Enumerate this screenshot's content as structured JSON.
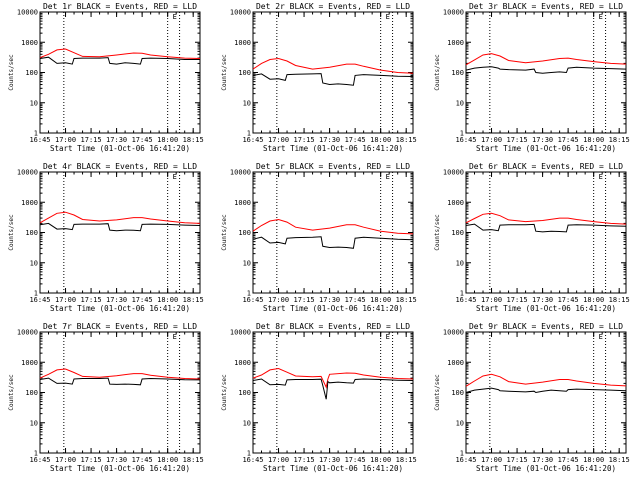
{
  "chart_data": [
    {
      "type": "line",
      "title": "Det 1r BLACK = Events, RED = LLD",
      "xlabel": "Start Time (01-Oct-06 16:41:20)",
      "ylabel": "Counts/sec",
      "yscale": "log",
      "ylim": [
        1,
        10000
      ],
      "xlim": [
        "16:45",
        "18:19"
      ],
      "x_ticks": [
        "16:45",
        "17:00",
        "17:15",
        "17:30",
        "17:45",
        "18:00",
        "18:15"
      ],
      "y_ticks": [
        "1",
        "10",
        "100",
        "1000",
        "10000"
      ],
      "vlines": [
        "16:59",
        "18:00",
        "18:07"
      ],
      "marker": "E",
      "series": [
        {
          "name": "Events",
          "color": "#000000",
          "x": [
            "16:45",
            "16:50",
            "16:55",
            "17:00",
            "17:04",
            "17:05",
            "17:10",
            "17:20",
            "17:25",
            "17:26",
            "17:30",
            "17:35",
            "17:40",
            "17:44",
            "17:45",
            "17:50",
            "18:00",
            "18:10",
            "18:19"
          ],
          "y": [
            290,
            320,
            200,
            210,
            190,
            290,
            300,
            300,
            310,
            200,
            190,
            210,
            200,
            190,
            290,
            300,
            290,
            270,
            270
          ]
        },
        {
          "name": "LLD",
          "color": "#ff0000",
          "x": [
            "16:45",
            "16:50",
            "16:55",
            "17:00",
            "17:05",
            "17:10",
            "17:20",
            "17:30",
            "17:40",
            "17:45",
            "17:50",
            "18:00",
            "18:10",
            "18:19"
          ],
          "y": [
            310,
            400,
            560,
            600,
            450,
            340,
            330,
            380,
            440,
            430,
            380,
            330,
            300,
            290
          ]
        }
      ]
    },
    {
      "type": "line",
      "title": "Det 2r BLACK = Events, RED = LLD",
      "xlabel": "Start Time (01-Oct-06 16:41:20)",
      "ylabel": "Counts/sec",
      "yscale": "log",
      "ylim": [
        1,
        10000
      ],
      "xlim": [
        "16:45",
        "18:19"
      ],
      "x_ticks": [
        "16:45",
        "17:00",
        "17:15",
        "17:30",
        "17:45",
        "18:00",
        "18:15"
      ],
      "y_ticks": [
        "1",
        "10",
        "100",
        "1000",
        "10000"
      ],
      "vlines": [
        "16:59",
        "18:00",
        "18:07"
      ],
      "marker": "E",
      "series": [
        {
          "name": "Events",
          "color": "#000000",
          "x": [
            "16:45",
            "16:50",
            "16:55",
            "17:00",
            "17:04",
            "17:05",
            "17:10",
            "17:20",
            "17:25",
            "17:26",
            "17:30",
            "17:35",
            "17:40",
            "17:44",
            "17:45",
            "17:50",
            "18:00",
            "18:10",
            "18:19"
          ],
          "y": [
            80,
            90,
            60,
            62,
            55,
            85,
            88,
            90,
            92,
            45,
            40,
            42,
            40,
            38,
            80,
            85,
            80,
            75,
            74
          ]
        },
        {
          "name": "LLD",
          "color": "#ff0000",
          "x": [
            "16:45",
            "16:50",
            "16:55",
            "17:00",
            "17:05",
            "17:10",
            "17:20",
            "17:30",
            "17:40",
            "17:45",
            "17:50",
            "18:00",
            "18:10",
            "18:19"
          ],
          "y": [
            130,
            200,
            270,
            290,
            240,
            170,
            130,
            150,
            190,
            190,
            160,
            120,
            100,
            95
          ]
        }
      ]
    },
    {
      "type": "line",
      "title": "Det 3r BLACK = Events, RED = LLD",
      "xlabel": "Start Time (01-Oct-06 16:41:20)",
      "ylabel": "Counts/sec",
      "yscale": "log",
      "ylim": [
        1,
        10000
      ],
      "xlim": [
        "16:45",
        "18:19"
      ],
      "x_ticks": [
        "16:45",
        "17:00",
        "17:15",
        "17:30",
        "17:45",
        "18:00",
        "18:15"
      ],
      "y_ticks": [
        "1",
        "10",
        "100",
        "1000",
        "10000"
      ],
      "vlines": [
        "16:59",
        "18:00",
        "18:07"
      ],
      "marker": "E",
      "series": [
        {
          "name": "Events",
          "color": "#000000",
          "x": [
            "16:45",
            "16:50",
            "16:55",
            "17:00",
            "17:04",
            "17:05",
            "17:10",
            "17:20",
            "17:25",
            "17:26",
            "17:30",
            "17:35",
            "17:40",
            "17:44",
            "17:45",
            "17:50",
            "18:00",
            "18:10",
            "18:19"
          ],
          "y": [
            120,
            140,
            150,
            155,
            140,
            130,
            125,
            120,
            130,
            100,
            95,
            100,
            105,
            100,
            140,
            150,
            140,
            135,
            130
          ]
        },
        {
          "name": "LLD",
          "color": "#ff0000",
          "x": [
            "16:45",
            "16:50",
            "16:55",
            "17:00",
            "17:05",
            "17:10",
            "17:20",
            "17:30",
            "17:40",
            "17:45",
            "17:50",
            "18:00",
            "18:10",
            "18:19"
          ],
          "y": [
            180,
            260,
            380,
            420,
            350,
            250,
            210,
            240,
            290,
            300,
            270,
            230,
            200,
            190
          ]
        }
      ]
    },
    {
      "type": "line",
      "title": "Det 4r BLACK = Events, RED = LLD",
      "xlabel": "Start Time (01-Oct-06 16:41:20)",
      "ylabel": "Counts/sec",
      "yscale": "log",
      "ylim": [
        1,
        10000
      ],
      "xlim": [
        "16:45",
        "18:19"
      ],
      "x_ticks": [
        "16:45",
        "17:00",
        "17:15",
        "17:30",
        "17:45",
        "18:00",
        "18:15"
      ],
      "y_ticks": [
        "1",
        "10",
        "100",
        "1000",
        "10000"
      ],
      "vlines": [
        "16:59",
        "18:00",
        "18:07"
      ],
      "marker": "E",
      "series": [
        {
          "name": "Events",
          "color": "#000000",
          "x": [
            "16:45",
            "16:50",
            "16:55",
            "17:00",
            "17:04",
            "17:05",
            "17:10",
            "17:20",
            "17:25",
            "17:26",
            "17:30",
            "17:35",
            "17:40",
            "17:44",
            "17:45",
            "17:50",
            "18:00",
            "18:10",
            "18:19"
          ],
          "y": [
            180,
            200,
            130,
            135,
            125,
            185,
            190,
            190,
            195,
            120,
            115,
            120,
            118,
            115,
            185,
            190,
            185,
            175,
            170
          ]
        },
        {
          "name": "LLD",
          "color": "#ff0000",
          "x": [
            "16:45",
            "16:50",
            "16:55",
            "17:00",
            "17:05",
            "17:10",
            "17:20",
            "17:30",
            "17:40",
            "17:45",
            "17:50",
            "18:00",
            "18:10",
            "18:19"
          ],
          "y": [
            210,
            300,
            430,
            470,
            380,
            270,
            240,
            260,
            310,
            310,
            280,
            240,
            210,
            200
          ]
        }
      ]
    },
    {
      "type": "line",
      "title": "Det 5r BLACK = Events, RED = LLD",
      "xlabel": "Start Time (01-Oct-06 16:41:20)",
      "ylabel": "Counts/sec",
      "yscale": "log",
      "ylim": [
        1,
        10000
      ],
      "xlim": [
        "16:45",
        "18:19"
      ],
      "x_ticks": [
        "16:45",
        "17:00",
        "17:15",
        "17:30",
        "17:45",
        "18:00",
        "18:15"
      ],
      "y_ticks": [
        "1",
        "10",
        "100",
        "1000",
        "10000"
      ],
      "vlines": [
        "16:59",
        "18:00",
        "18:07"
      ],
      "marker": "E",
      "series": [
        {
          "name": "Events",
          "color": "#000000",
          "x": [
            "16:45",
            "16:50",
            "16:55",
            "17:00",
            "17:04",
            "17:05",
            "17:10",
            "17:20",
            "17:25",
            "17:26",
            "17:30",
            "17:35",
            "17:40",
            "17:44",
            "17:45",
            "17:50",
            "18:00",
            "18:10",
            "18:19"
          ],
          "y": [
            60,
            70,
            45,
            47,
            42,
            65,
            68,
            70,
            72,
            35,
            32,
            33,
            32,
            30,
            65,
            70,
            65,
            60,
            58
          ]
        },
        {
          "name": "LLD",
          "color": "#ff0000",
          "x": [
            "16:45",
            "16:50",
            "16:55",
            "17:00",
            "17:05",
            "17:10",
            "17:20",
            "17:30",
            "17:40",
            "17:45",
            "17:50",
            "18:00",
            "18:10",
            "18:19"
          ],
          "y": [
            110,
            170,
            240,
            270,
            220,
            150,
            120,
            140,
            180,
            180,
            150,
            110,
            95,
            90
          ]
        }
      ]
    },
    {
      "type": "line",
      "title": "Det 6r BLACK = Events, RED = LLD",
      "xlabel": "Start Time (01-Oct-06 16:41:20)",
      "ylabel": "Counts/sec",
      "yscale": "log",
      "ylim": [
        1,
        10000
      ],
      "xlim": [
        "16:45",
        "18:19"
      ],
      "x_ticks": [
        "16:45",
        "17:00",
        "17:15",
        "17:30",
        "17:45",
        "18:00",
        "18:15"
      ],
      "y_ticks": [
        "1",
        "10",
        "100",
        "1000",
        "10000"
      ],
      "vlines": [
        "16:59",
        "18:00",
        "18:07"
      ],
      "marker": "E",
      "series": [
        {
          "name": "Events",
          "color": "#000000",
          "x": [
            "16:45",
            "16:50",
            "16:55",
            "17:00",
            "17:04",
            "17:05",
            "17:10",
            "17:20",
            "17:25",
            "17:26",
            "17:30",
            "17:35",
            "17:40",
            "17:44",
            "17:45",
            "17:50",
            "18:00",
            "18:10",
            "18:19"
          ],
          "y": [
            170,
            190,
            120,
            125,
            115,
            175,
            180,
            180,
            185,
            110,
            105,
            110,
            108,
            105,
            175,
            180,
            175,
            165,
            160
          ]
        },
        {
          "name": "LLD",
          "color": "#ff0000",
          "x": [
            "16:45",
            "16:50",
            "16:55",
            "17:00",
            "17:05",
            "17:10",
            "17:20",
            "17:30",
            "17:40",
            "17:45",
            "17:50",
            "18:00",
            "18:10",
            "18:19"
          ],
          "y": [
            210,
            290,
            400,
            430,
            360,
            260,
            230,
            250,
            300,
            300,
            270,
            230,
            200,
            190
          ]
        }
      ]
    },
    {
      "type": "line",
      "title": "Det 7r BLACK = Events, RED = LLD",
      "xlabel": "Start Time (01-Oct-06 16:41:20)",
      "ylabel": "Counts/sec",
      "yscale": "log",
      "ylim": [
        1,
        10000
      ],
      "xlim": [
        "16:45",
        "18:19"
      ],
      "x_ticks": [
        "16:45",
        "17:00",
        "17:15",
        "17:30",
        "17:45",
        "18:00",
        "18:15"
      ],
      "y_ticks": [
        "1",
        "10",
        "100",
        "1000",
        "10000"
      ],
      "vlines": [
        "16:59",
        "18:00",
        "18:07"
      ],
      "marker": "E",
      "series": [
        {
          "name": "Events",
          "color": "#000000",
          "x": [
            "16:45",
            "16:50",
            "16:55",
            "17:00",
            "17:04",
            "17:05",
            "17:10",
            "17:20",
            "17:25",
            "17:26",
            "17:30",
            "17:35",
            "17:40",
            "17:44",
            "17:45",
            "17:50",
            "18:00",
            "18:10",
            "18:19"
          ],
          "y": [
            270,
            300,
            200,
            205,
            190,
            280,
            290,
            290,
            300,
            190,
            185,
            190,
            185,
            180,
            280,
            290,
            280,
            265,
            260
          ]
        },
        {
          "name": "LLD",
          "color": "#ff0000",
          "x": [
            "16:45",
            "16:50",
            "16:55",
            "17:00",
            "17:05",
            "17:10",
            "17:20",
            "17:30",
            "17:40",
            "17:45",
            "17:50",
            "18:00",
            "18:10",
            "18:19"
          ],
          "y": [
            300,
            400,
            560,
            600,
            460,
            340,
            320,
            360,
            420,
            420,
            370,
            320,
            290,
            280
          ]
        }
      ]
    },
    {
      "type": "line",
      "title": "Det 8r BLACK = Events, RED = LLD",
      "xlabel": "Start Time (01-Oct-06 16:41:20)",
      "ylabel": "Counts/sec",
      "yscale": "log",
      "ylim": [
        1,
        10000
      ],
      "xlim": [
        "16:45",
        "18:19"
      ],
      "x_ticks": [
        "16:45",
        "17:00",
        "17:15",
        "17:30",
        "17:45",
        "18:00",
        "18:15"
      ],
      "y_ticks": [
        "1",
        "10",
        "100",
        "1000",
        "10000"
      ],
      "vlines": [
        "16:59",
        "18:00",
        "18:07"
      ],
      "marker": "E",
      "series": [
        {
          "name": "Events",
          "color": "#000000",
          "x": [
            "16:45",
            "16:50",
            "16:55",
            "17:00",
            "17:04",
            "17:05",
            "17:10",
            "17:20",
            "17:25",
            "17:26",
            "17:28",
            "17:29",
            "17:30",
            "17:35",
            "17:40",
            "17:44",
            "17:45",
            "17:50",
            "18:00",
            "18:10",
            "18:19"
          ],
          "y": [
            250,
            280,
            180,
            185,
            175,
            260,
            270,
            270,
            275,
            170,
            60,
            230,
            210,
            220,
            210,
            205,
            270,
            280,
            270,
            255,
            250
          ]
        },
        {
          "name": "LLD",
          "color": "#ff0000",
          "x": [
            "16:45",
            "16:50",
            "16:55",
            "17:00",
            "17:05",
            "17:10",
            "17:20",
            "17:25",
            "17:28",
            "17:29",
            "17:30",
            "17:40",
            "17:45",
            "17:50",
            "18:00",
            "18:10",
            "18:19"
          ],
          "y": [
            300,
            380,
            560,
            620,
            470,
            350,
            330,
            340,
            150,
            280,
            400,
            440,
            430,
            380,
            320,
            290,
            280
          ]
        }
      ]
    },
    {
      "type": "line",
      "title": "Det 9r BLACK = Events, RED = LLD",
      "xlabel": "Start Time (01-Oct-06 16:41:20)",
      "ylabel": "Counts/sec",
      "yscale": "log",
      "ylim": [
        1,
        10000
      ],
      "xlim": [
        "16:45",
        "18:19"
      ],
      "x_ticks": [
        "16:45",
        "17:00",
        "17:15",
        "17:30",
        "17:45",
        "18:00",
        "18:15"
      ],
      "y_ticks": [
        "1",
        "10",
        "100",
        "1000",
        "10000"
      ],
      "vlines": [
        "16:59",
        "18:00",
        "18:07"
      ],
      "marker": "E",
      "series": [
        {
          "name": "Events",
          "color": "#000000",
          "x": [
            "16:45",
            "16:50",
            "16:55",
            "17:00",
            "17:04",
            "17:05",
            "17:10",
            "17:20",
            "17:25",
            "17:26",
            "17:30",
            "17:35",
            "17:40",
            "17:44",
            "17:45",
            "17:50",
            "18:00",
            "18:10",
            "18:19"
          ],
          "y": [
            100,
            120,
            130,
            140,
            125,
            115,
            110,
            105,
            110,
            100,
            110,
            120,
            115,
            110,
            125,
            130,
            125,
            120,
            115
          ]
        },
        {
          "name": "LLD",
          "color": "#ff0000",
          "x": [
            "16:45",
            "16:50",
            "16:55",
            "17:00",
            "17:05",
            "17:10",
            "17:20",
            "17:30",
            "17:40",
            "17:45",
            "17:50",
            "18:00",
            "18:10",
            "18:19"
          ],
          "y": [
            160,
            240,
            350,
            400,
            330,
            230,
            190,
            220,
            270,
            270,
            240,
            200,
            175,
            165
          ]
        }
      ]
    }
  ]
}
